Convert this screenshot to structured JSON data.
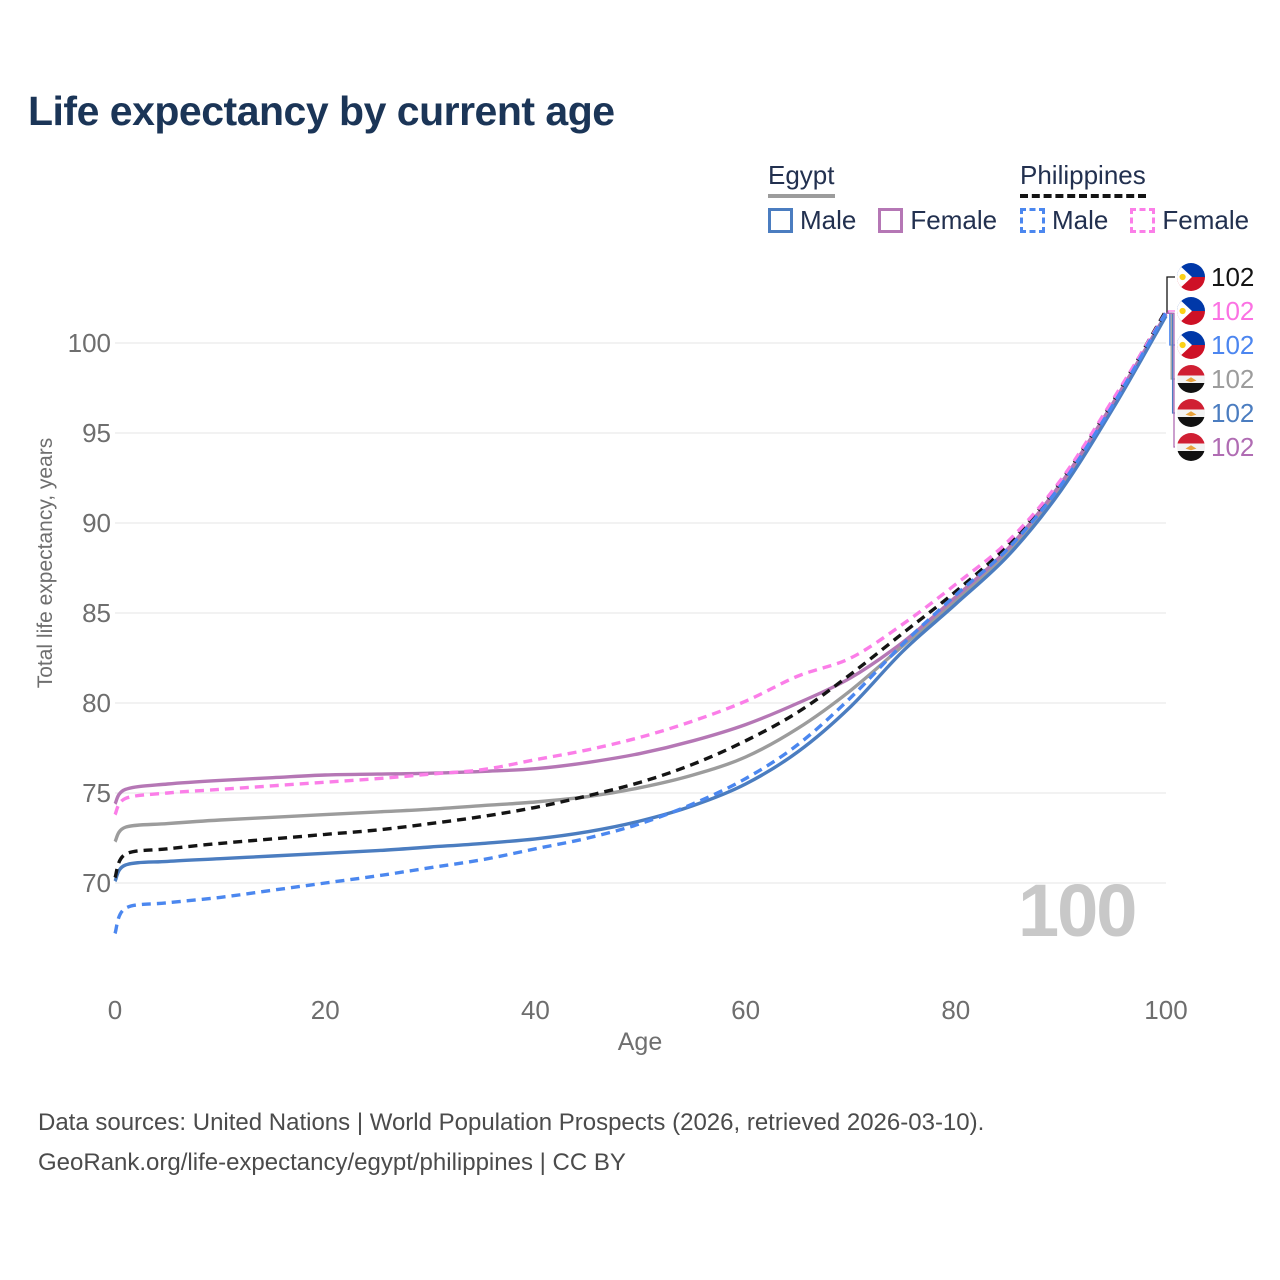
{
  "header": {
    "title": "Life expectancy by current age"
  },
  "legend": {
    "groups": [
      {
        "label": "Egypt",
        "underline_style": "solid",
        "underline_color": "#9c9c9c",
        "items": [
          {
            "label": "Male",
            "color": "#4b7dc0",
            "dashed": false
          },
          {
            "label": "Female",
            "color": "#b577b5",
            "dashed": false
          }
        ]
      },
      {
        "label": "Philippines",
        "underline_style": "dashed",
        "underline_color": "#141414",
        "items": [
          {
            "label": "Male",
            "color": "#4b87ef",
            "dashed": true
          },
          {
            "label": "Female",
            "color": "#fb7ee8",
            "dashed": true
          }
        ]
      }
    ]
  },
  "chart_data": {
    "type": "line",
    "title": "Life expectancy by current age",
    "xlabel": "Age",
    "ylabel": "Total life expectancy, years",
    "x_ticks": [
      0,
      20,
      40,
      60,
      80,
      100
    ],
    "y_ticks": [
      70,
      75,
      80,
      85,
      90,
      95,
      100
    ],
    "xlim": [
      0,
      100
    ],
    "ylim": [
      66.5,
      102.5
    ],
    "grid": "horizontal",
    "x": [
      0,
      1,
      5,
      10,
      15,
      20,
      25,
      30,
      35,
      40,
      45,
      50,
      55,
      60,
      65,
      70,
      75,
      80,
      85,
      90,
      95,
      100
    ],
    "series": [
      {
        "id": "eg_total",
        "name": "Egypt Total",
        "style": "solid",
        "color": "#9c9c9c",
        "values": [
          72.3,
          73.1,
          73.3,
          73.5,
          73.65,
          73.8,
          73.95,
          74.1,
          74.3,
          74.5,
          74.8,
          75.3,
          76.0,
          77.0,
          78.6,
          80.7,
          83.2,
          85.7,
          88.4,
          92.0,
          96.6,
          101.6
        ]
      },
      {
        "id": "eg_female",
        "name": "Egypt Female",
        "style": "solid",
        "color": "#b577b5",
        "values": [
          74.4,
          75.2,
          75.5,
          75.7,
          75.85,
          76.0,
          76.05,
          76.1,
          76.2,
          76.35,
          76.7,
          77.2,
          77.9,
          78.8,
          80.0,
          81.4,
          83.4,
          85.9,
          88.6,
          92.2,
          96.7,
          101.6
        ]
      },
      {
        "id": "eg_male",
        "name": "Egypt Male",
        "style": "solid",
        "color": "#4b7dc0",
        "values": [
          70.1,
          71.0,
          71.2,
          71.35,
          71.5,
          71.65,
          71.8,
          72.0,
          72.2,
          72.45,
          72.85,
          73.45,
          74.3,
          75.5,
          77.3,
          79.8,
          82.9,
          85.5,
          88.2,
          91.8,
          96.4,
          101.5
        ]
      },
      {
        "id": "ph_total",
        "name": "Philippines Total",
        "style": "dashed",
        "color": "#141414",
        "values": [
          70.3,
          71.6,
          71.9,
          72.2,
          72.45,
          72.7,
          72.95,
          73.3,
          73.7,
          74.2,
          74.85,
          75.6,
          76.6,
          77.9,
          79.5,
          81.6,
          83.9,
          86.2,
          88.8,
          92.3,
          96.8,
          101.8
        ]
      },
      {
        "id": "ph_female",
        "name": "Philippines Female",
        "style": "dashed",
        "color": "#fb7ee8",
        "values": [
          73.8,
          74.7,
          75.0,
          75.2,
          75.4,
          75.6,
          75.8,
          76.05,
          76.3,
          76.85,
          77.4,
          78.1,
          79.0,
          80.1,
          81.5,
          82.5,
          84.4,
          86.6,
          89.0,
          92.4,
          96.9,
          101.7
        ]
      },
      {
        "id": "ph_male",
        "name": "Philippines Male",
        "style": "dashed",
        "color": "#4b87ef",
        "values": [
          67.2,
          68.6,
          68.9,
          69.2,
          69.6,
          70.0,
          70.4,
          70.85,
          71.3,
          71.9,
          72.5,
          73.3,
          74.4,
          75.8,
          77.7,
          80.3,
          83.3,
          86.0,
          88.6,
          92.1,
          96.6,
          101.7
        ]
      }
    ],
    "legend_position": "top-right"
  },
  "endpoint_labels": [
    {
      "country": "Philippines",
      "flag": "ph",
      "series": "ph_total",
      "value": "102",
      "color": "#141414"
    },
    {
      "country": "Philippines",
      "flag": "ph",
      "series": "ph_female",
      "value": "102",
      "color": "#fb72e3"
    },
    {
      "country": "Philippines",
      "flag": "ph",
      "series": "ph_male",
      "value": "102",
      "color": "#4c86f0"
    },
    {
      "country": "Egypt",
      "flag": "eg",
      "series": "eg_total",
      "value": "102",
      "color": "#9c9c9c"
    },
    {
      "country": "Egypt",
      "flag": "eg",
      "series": "eg_male",
      "value": "102",
      "color": "#4b7dc0"
    },
    {
      "country": "Egypt",
      "flag": "eg",
      "series": "eg_female",
      "value": "102",
      "color": "#b06cb3"
    }
  ],
  "watermark_age": "100",
  "footer": {
    "line1": "Data sources: United Nations | World Population Prospects (2026, retrieved 2026-03-10).",
    "line2": "GeoRank.org/life-expectancy/egypt/philippines | CC BY"
  },
  "colors": {
    "title_text": "#1b3557",
    "legend_text": "#22304f",
    "tick_text": "#6e6e6e",
    "grid": "#e9e9e9",
    "footer_text": "#4b4b4b",
    "watermark": "#c8c8c8"
  }
}
